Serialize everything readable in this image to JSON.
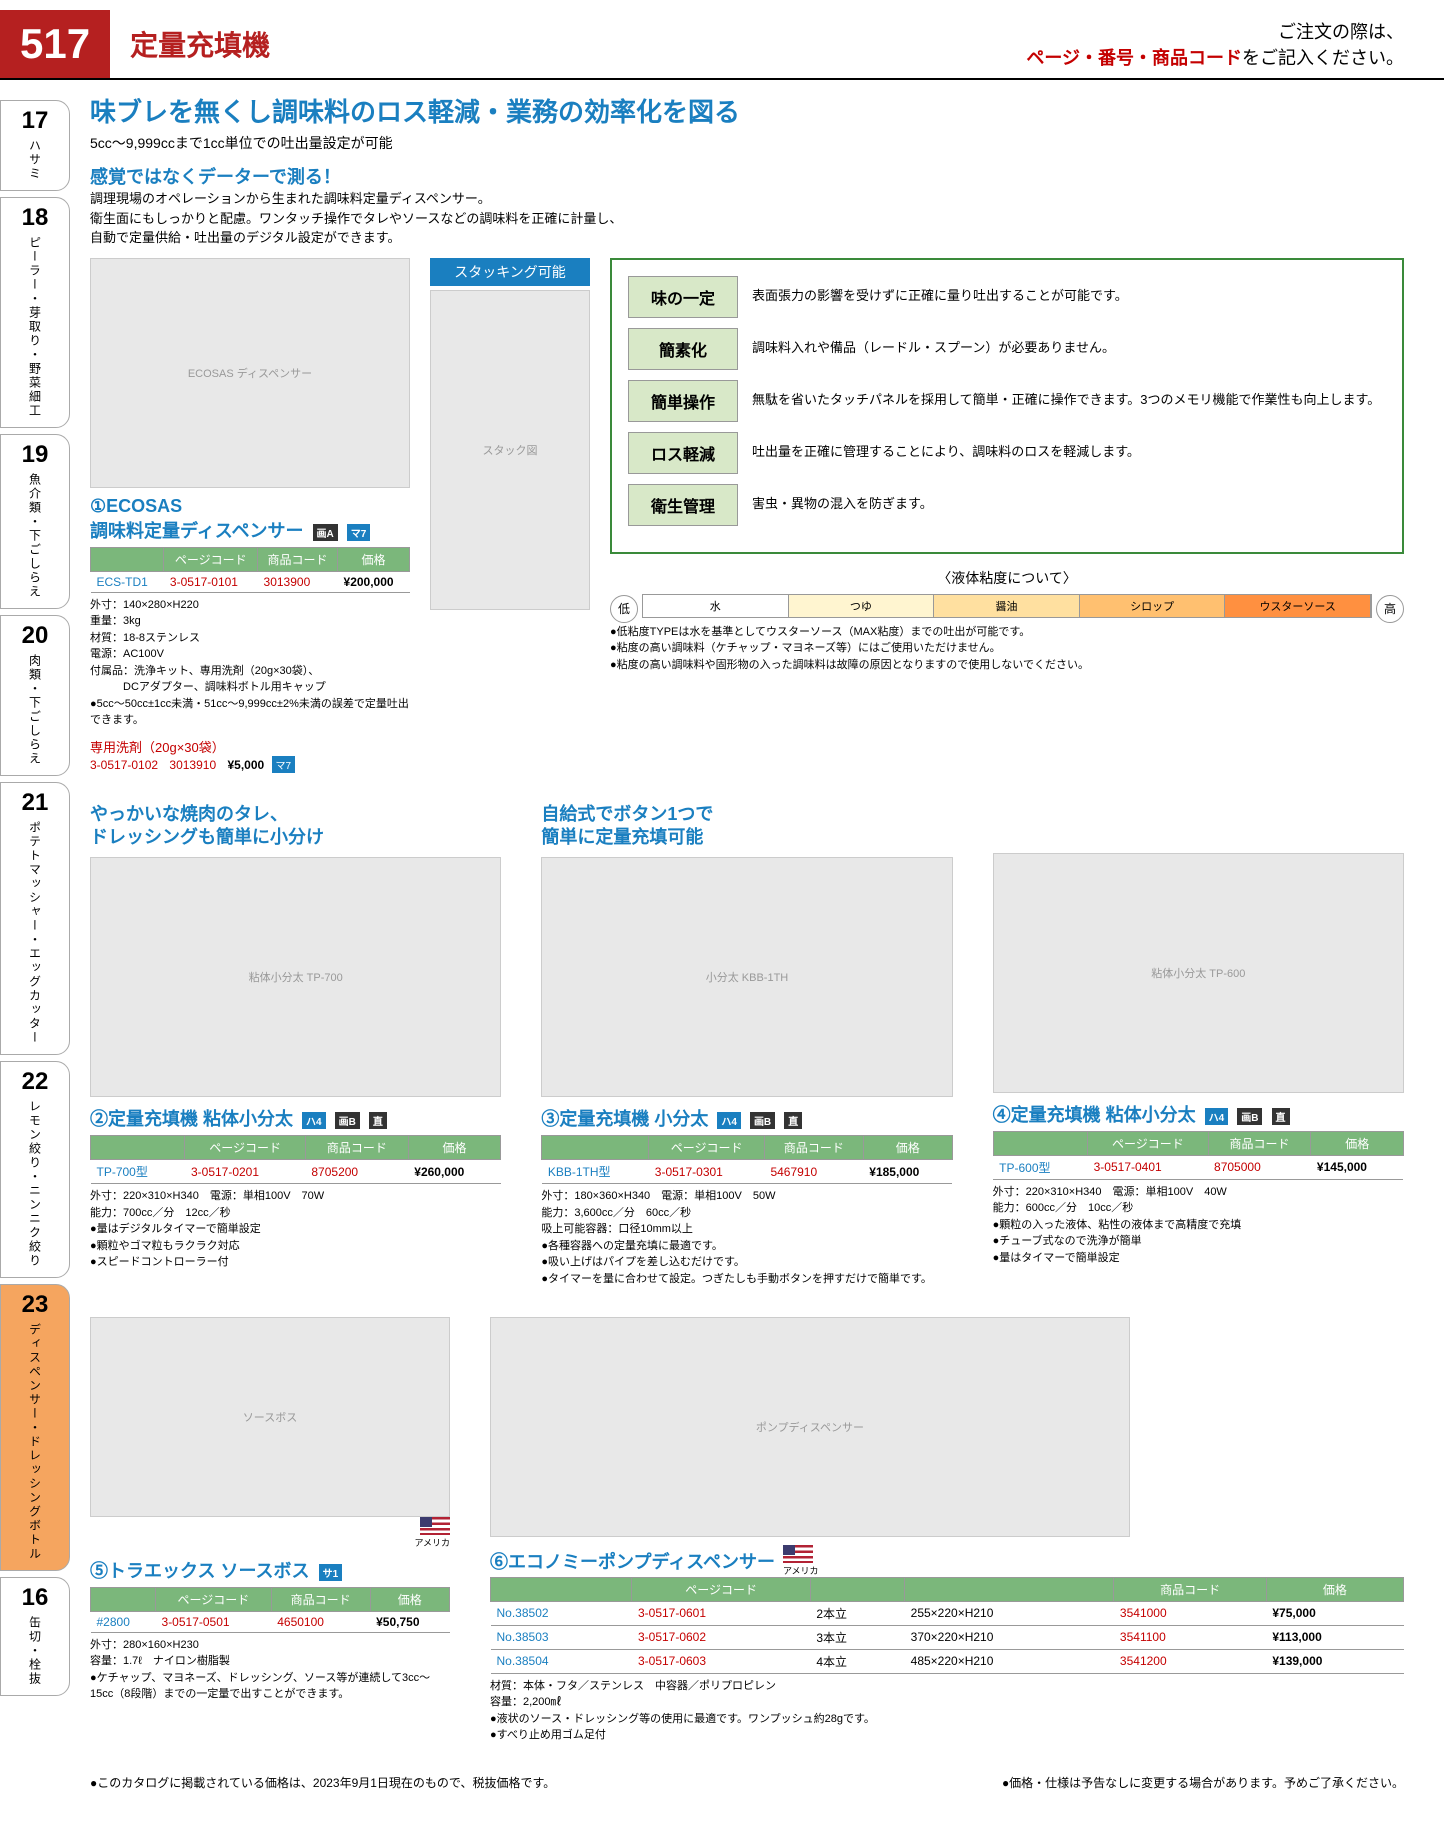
{
  "header": {
    "page_number": "517",
    "title": "定量充填機",
    "order_note_l1": "ご注文の際は、",
    "order_note_red": "ページ・番号・商品コード",
    "order_note_l2": "をご記入ください。"
  },
  "tabs": [
    {
      "num": "17",
      "text": "ハサミ"
    },
    {
      "num": "18",
      "text": "ピーラー・芽取り・野菜細工"
    },
    {
      "num": "19",
      "text": "魚介類・下ごしらえ"
    },
    {
      "num": "20",
      "text": "肉類・下ごしらえ"
    },
    {
      "num": "21",
      "text": "ポテトマッシャー・エッグカッター"
    },
    {
      "num": "22",
      "text": "レモン絞り・ニンニク絞り"
    },
    {
      "num": "23",
      "text": "ディスペンサー・ドレッシングボトル",
      "active": true
    },
    {
      "num": "16",
      "text": "缶切・栓抜"
    }
  ],
  "intro": {
    "headline": "味ブレを無くし調味料のロス軽減・業務の効率化を図る",
    "subline": "5cc〜9,999ccまで1cc単位での吐出量設定が可能",
    "sensor_title": "感覚ではなくデーターで測る！",
    "desc": "調理現場のオペレーションから生まれた調味料定量ディスペンサー。\n衛生面にもしっかりと配慮。ワンタッチ操作でタレやソースなどの調味料を正確に計量し、\n自動で定量供給・吐出量のデジタル設定ができます。",
    "stack_label": "スタッキング可能"
  },
  "features": [
    {
      "label": "味の一定",
      "text": "表面張力の影響を受けずに正確に量り吐出することが可能です。"
    },
    {
      "label": "簡素化",
      "text": "調味料入れや備品（レードル・スプーン）が必要ありません。"
    },
    {
      "label": "簡単操作",
      "text": "無駄を省いたタッチパネルを採用して簡単・正確に操作できます。3つのメモリ機能で作業性も向上します。"
    },
    {
      "label": "ロス軽減",
      "text": "吐出量を正確に管理することにより、調味料のロスを軽減します。"
    },
    {
      "label": "衛生管理",
      "text": "害虫・異物の混入を防ぎます。"
    }
  ],
  "viscosity": {
    "title": "〈液体粘度について〉",
    "low": "低",
    "high": "高",
    "segments": [
      {
        "label": "水",
        "color": "#ffffff"
      },
      {
        "label": "つゆ",
        "color": "#fff5d0"
      },
      {
        "label": "醤油",
        "color": "#ffe0a0"
      },
      {
        "label": "シロップ",
        "color": "#ffc070"
      },
      {
        "label": "ウスターソース",
        "color": "#ff9040"
      }
    ],
    "notes": "●低粘度TYPEは水を基準としてウスターソース（MAX粘度）までの吐出が可能です。\n●粘度の高い調味料（ケチャップ・マヨネーズ等）にはご使用いただけません。\n●粘度の高い調味料や固形物の入った調味料は故障の原因となりますので使用しないでください。"
  },
  "product1": {
    "num": "①",
    "name": "ECOSAS\n調味料定量ディスペンサー",
    "table_headers": [
      "ページコード",
      "商品コード",
      "価格"
    ],
    "model": "ECS-TD1",
    "page_code": "3-0517-0101",
    "prod_code": "3013900",
    "price": "¥200,000",
    "spec": "外寸：140×280×H220\n重量：3kg\n材質：18-8ステンレス\n電源：AC100V\n付属品：洗浄キット、専用洗剤（20g×30袋）、\n　　　DCアダプター、調味料ボトル用キャップ\n●5cc〜50cc±1cc未満・51cc〜9,999cc±2%未満の誤差で定量吐出できます。",
    "addon_title": "専用洗剤（20g×30袋）",
    "addon_page_code": "3-0517-0102",
    "addon_prod_code": "3013910",
    "addon_price": "¥5,000"
  },
  "product2": {
    "lead": "やっかいな焼肉のタレ、\nドレッシングも簡単に小分け",
    "num": "②",
    "name": "定量充填機 粘体小分太",
    "model": "TP-700型",
    "page_code": "3-0517-0201",
    "prod_code": "8705200",
    "price": "¥260,000",
    "spec": "外寸：220×310×H340　電源：単相100V　70W\n能力：700cc／分　12cc／秒\n●量はデジタルタイマーで簡単設定\n●顆粒やゴマ粒もラクラク対応\n●スピードコントローラー付"
  },
  "product3": {
    "lead": "自給式でボタン1つで\n簡単に定量充填可能",
    "num": "③",
    "name": "定量充填機 小分太",
    "model": "KBB-1TH型",
    "page_code": "3-0517-0301",
    "prod_code": "5467910",
    "price": "¥185,000",
    "spec": "外寸：180×360×H340　電源：単相100V　50W\n能力：3,600cc／分　60cc／秒\n吸上可能容器：口径10mm以上\n●各種容器への定量充填に最適です。\n●吸い上げはパイプを差し込むだけです。\n●タイマーを量に合わせて設定。つぎたしも手動ボタンを押すだけで簡単です。"
  },
  "product4": {
    "num": "④",
    "name": "定量充填機 粘体小分太",
    "model": "TP-600型",
    "page_code": "3-0517-0401",
    "prod_code": "8705000",
    "price": "¥145,000",
    "spec": "外寸：220×310×H340　電源：単相100V　40W\n能力：600cc／分　10cc／秒\n●顆粒の入った液体、粘性の液体まで高精度で充填\n●チューブ式なので洗浄が簡単\n●量はタイマーで簡単設定"
  },
  "product5": {
    "num": "⑤",
    "name": "トラエックス ソースボス",
    "model": "#2800",
    "page_code": "3-0517-0501",
    "prod_code": "4650100",
    "price": "¥50,750",
    "spec": "外寸：280×160×H230\n容量：1.7ℓ　ナイロン樹脂製\n●ケチャップ、マヨネーズ、ドレッシング、ソース等が連続して3cc〜15cc（8段階）までの一定量で出すことができます。",
    "flag_label": "アメリカ"
  },
  "product6": {
    "num": "⑥",
    "name": "エコノミーポンプディスペンサー",
    "flag_label": "アメリカ",
    "table_headers": [
      "",
      "ページコード",
      "",
      "",
      "商品コード",
      "価格"
    ],
    "rows": [
      {
        "no": "No.38502",
        "pc": "3-0517-0601",
        "conf": "2本立",
        "size": "255×220×H210",
        "code": "3541000",
        "price": "¥75,000"
      },
      {
        "no": "No.38503",
        "pc": "3-0517-0602",
        "conf": "3本立",
        "size": "370×220×H210",
        "code": "3541100",
        "price": "¥113,000"
      },
      {
        "no": "No.38504",
        "pc": "3-0517-0603",
        "conf": "4本立",
        "size": "485×220×H210",
        "code": "3541200",
        "price": "¥139,000"
      }
    ],
    "spec": "材質：本体・フタ／ステンレス　中容器／ポリプロピレン\n容量：2,200㎖\n●液状のソース・ドレッシング等の使用に最適です。ワンプッシュ約28gです。\n●すべり止め用ゴム足付"
  },
  "table_headers": {
    "pc": "ページコード",
    "code": "商品コード",
    "price": "価格"
  },
  "footnote": {
    "left": "●このカタログに掲載されている価格は、2023年9月1日現在のもので、税抜価格です。",
    "right": "●価格・仕様は予告なしに変更する場合があります。予めご了承ください。"
  }
}
